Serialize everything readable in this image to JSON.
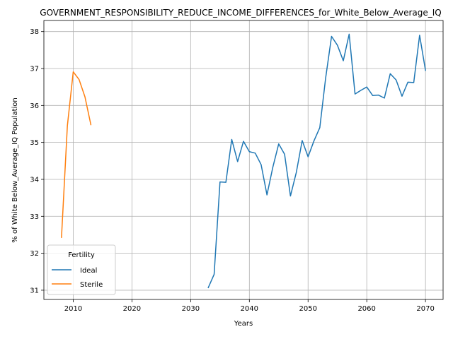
{
  "chart_data": {
    "type": "line",
    "title": "GOVERNMENT_RESPONSIBILITY_REDUCE_INCOME_DIFFERENCES_for_White_Below_Average_IQ",
    "xlabel": "Years",
    "ylabel": "% of White Below_Average_IQ Population",
    "xlim": [
      2005,
      2073
    ],
    "ylim": [
      30.75,
      38.3
    ],
    "xticks": [
      2010,
      2020,
      2030,
      2040,
      2050,
      2060,
      2070
    ],
    "yticks": [
      31,
      32,
      33,
      34,
      35,
      36,
      37,
      38
    ],
    "grid": true,
    "legend": {
      "title": "Fertility",
      "placement": "lower-left"
    },
    "series": [
      {
        "name": "Ideal",
        "color": "#1f77b4",
        "x": [
          2033,
          2034,
          2035,
          2036,
          2037,
          2038,
          2039,
          2040,
          2041,
          2042,
          2043,
          2044,
          2045,
          2046,
          2047,
          2048,
          2049,
          2050,
          2051,
          2052,
          2053,
          2054,
          2055,
          2056,
          2057,
          2058,
          2059,
          2060,
          2061,
          2062,
          2063,
          2064,
          2065,
          2066,
          2067,
          2068,
          2069,
          2070
        ],
        "y": [
          31.07,
          31.43,
          33.93,
          33.92,
          35.08,
          34.48,
          35.03,
          34.75,
          34.71,
          34.4,
          33.58,
          34.33,
          34.96,
          34.68,
          33.55,
          34.19,
          35.05,
          34.61,
          35.04,
          35.4,
          36.75,
          37.87,
          37.63,
          37.21,
          37.93,
          36.31,
          36.41,
          36.5,
          36.27,
          36.28,
          36.2,
          36.86,
          36.69,
          36.25,
          36.63,
          36.62,
          37.9,
          36.95
        ]
      },
      {
        "name": "Sterile",
        "color": "#ff7f0e",
        "x": [
          2008,
          2009,
          2010,
          2011,
          2012,
          2013
        ],
        "y": [
          32.43,
          35.45,
          36.91,
          36.7,
          36.23,
          35.48
        ]
      }
    ]
  }
}
